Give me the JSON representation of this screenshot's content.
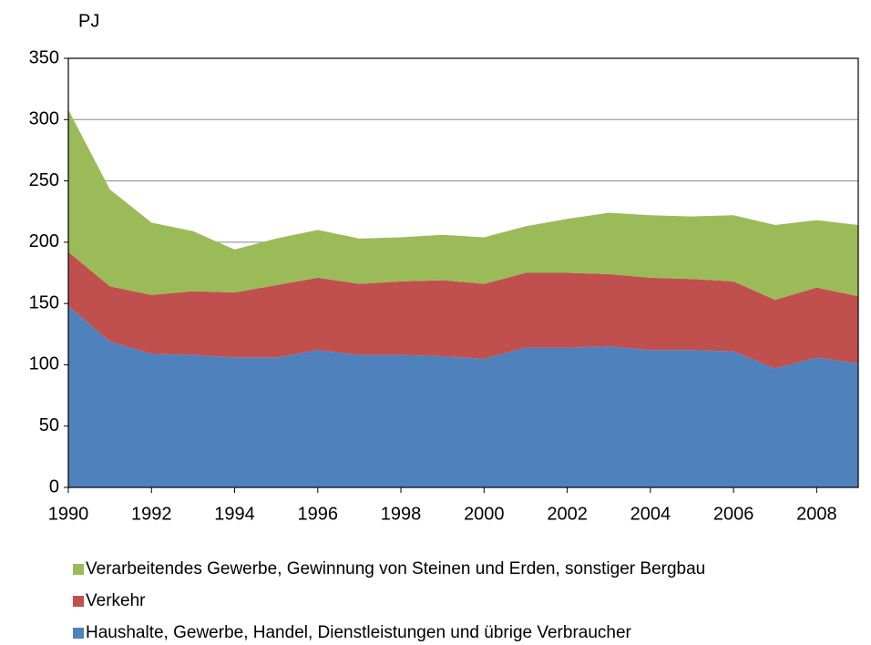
{
  "chart_data": {
    "type": "stacked-area",
    "y_label": "PJ",
    "x": [
      1990,
      1991,
      1992,
      1993,
      1994,
      1995,
      1996,
      1997,
      1998,
      1999,
      2000,
      2001,
      2002,
      2003,
      2004,
      2005,
      2006,
      2007,
      2008,
      2009
    ],
    "xlim": [
      1990,
      2009
    ],
    "xticks": [
      1990,
      1992,
      1994,
      1996,
      1998,
      2000,
      2002,
      2004,
      2006,
      2008
    ],
    "ylim": [
      0,
      350
    ],
    "yticks": [
      0,
      50,
      100,
      150,
      200,
      250,
      300,
      350
    ],
    "grid": true,
    "series": [
      {
        "name": "Haushalte, Gewerbe, Handel, Dienstleistungen und übrige Verbraucher",
        "color": "#4f81bd",
        "values": [
          148,
          119,
          109,
          108,
          106,
          106,
          112,
          108,
          108,
          107,
          105,
          114,
          114,
          115,
          112,
          112,
          111,
          97,
          106,
          101
        ]
      },
      {
        "name": "Verkehr",
        "color": "#c0504d",
        "values": [
          44,
          45,
          48,
          52,
          53,
          59,
          59,
          58,
          60,
          62,
          61,
          61,
          61,
          59,
          59,
          58,
          57,
          56,
          57,
          55
        ]
      },
      {
        "name": "Verarbeitendes Gewerbe, Gewinnung von Steinen und Erden, sonstiger Bergbau",
        "color": "#9bbb59",
        "values": [
          116,
          79,
          59,
          49,
          35,
          38,
          39,
          37,
          36,
          37,
          38,
          38,
          44,
          50,
          51,
          51,
          54,
          61,
          55,
          58
        ]
      }
    ]
  }
}
